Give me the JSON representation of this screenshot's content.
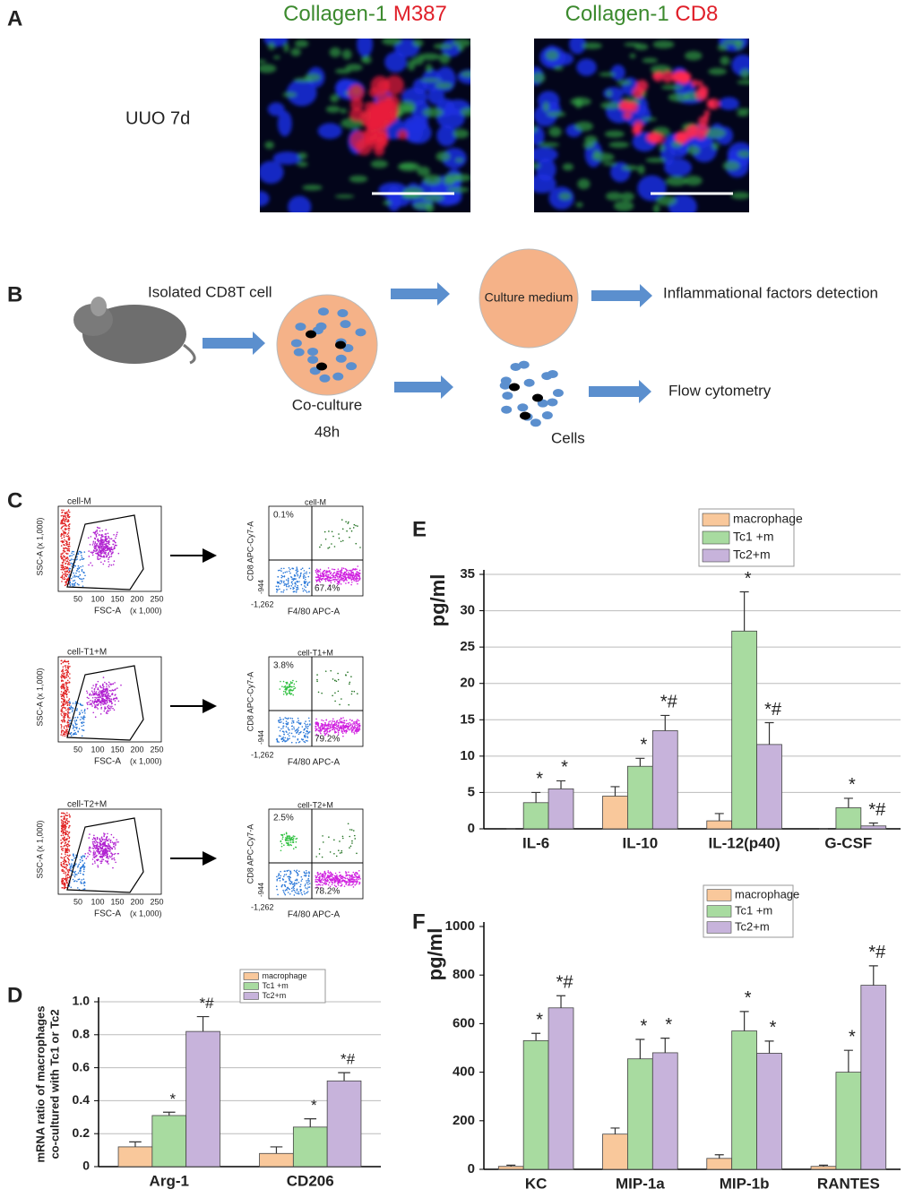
{
  "panels": {
    "labels": [
      "A",
      "B",
      "C",
      "D",
      "E",
      "F"
    ],
    "A": {
      "row_label": "UUO 7d",
      "images": [
        {
          "stain1": "Collagen-1",
          "stain2": "M387"
        },
        {
          "stain1": "Collagen-1",
          "stain2": "CD8"
        }
      ]
    },
    "B": {
      "source": "Isolated CD8T cell",
      "coculture": "Co-culture",
      "duration": "48h",
      "medium": "Culture medium",
      "cells": "Cells",
      "medium_output": "Inflammational factors detection",
      "cells_output": "Flow cytometry"
    },
    "C": {
      "fsc_label": "FSC-A",
      "ssc_label": "SSC-A (x 1,000)",
      "scale": "(x 1,000)",
      "fsc_ticks": [
        "50",
        "100",
        "150",
        "200",
        "250"
      ],
      "cd8_label": "CD8 APC-Cy7-A",
      "f480_label": "F4/80 APC-A",
      "neg_x": "-1,262",
      "neg_y": "-944",
      "plots": [
        {
          "gate": "cell-M",
          "upper": "0.1%",
          "lower": "67.4%"
        },
        {
          "gate": "cell-T1+M",
          "upper": "3.8%",
          "lower": "79.2%"
        },
        {
          "gate": "cell-T2+M",
          "upper": "2.5%",
          "lower": "78.2%"
        }
      ]
    }
  },
  "chart_data": [
    {
      "type": "bar",
      "ylabel": [
        "mRNA ratio of macrophages",
        "co-cultured with Tc1 or Tc2"
      ],
      "categories": [
        "Arg-1",
        "CD206"
      ],
      "series": [
        {
          "name": "macrophage",
          "color": "#f9c89b",
          "values": [
            0.12,
            0.08
          ],
          "errors": [
            0.03,
            0.04
          ],
          "labels": [
            null,
            null
          ]
        },
        {
          "name": "Tc1 +m",
          "color": "#a8dba0",
          "values": [
            0.31,
            0.24
          ],
          "errors": [
            0.02,
            0.05
          ],
          "labels": [
            "*",
            "*"
          ]
        },
        {
          "name": "Tc2+m",
          "color": "#c7b3db",
          "values": [
            0.82,
            0.52
          ],
          "errors": [
            0.09,
            0.05
          ],
          "labels": [
            "*#",
            "*#"
          ]
        }
      ],
      "ylim": [
        0,
        1
      ],
      "yticks": [
        0,
        0.2,
        0.4,
        0.6,
        0.8,
        {
          "value": 1,
          "label": "1.0"
        }
      ],
      "grid": true
    },
    {
      "type": "bar",
      "ylabel": "pg/ml",
      "categories": [
        "IL-6",
        "IL-10",
        "IL-12(p40)",
        "G-CSF"
      ],
      "series": [
        {
          "name": "macrophage",
          "color": "#f9c89b",
          "values": [
            0,
            4.5,
            1.1,
            0
          ],
          "errors": [
            0,
            1.3,
            1.0,
            0
          ],
          "labels": [
            null,
            null,
            null,
            null
          ]
        },
        {
          "name": "Tc1 +m",
          "color": "#a8dba0",
          "values": [
            3.6,
            8.6,
            27.2,
            2.9
          ],
          "errors": [
            1.4,
            1.1,
            5.4,
            1.3
          ],
          "labels": [
            "*",
            "*",
            "*",
            "*"
          ]
        },
        {
          "name": "Tc2+m",
          "color": "#c7b3db",
          "values": [
            5.5,
            13.5,
            11.6,
            0.4
          ],
          "errors": [
            1.1,
            2.1,
            3.0,
            0.4
          ],
          "labels": [
            "*",
            "*#",
            "*#",
            "*#"
          ]
        }
      ],
      "ylim": [
        0,
        35
      ],
      "yticks": [
        0,
        5,
        10,
        15,
        20,
        25,
        30,
        35
      ],
      "grid": true
    },
    {
      "type": "bar",
      "ylabel": "pg/ml",
      "categories": [
        "KC",
        "MIP-1a",
        "MIP-1b",
        "RANTES"
      ],
      "series": [
        {
          "name": "macrophage",
          "color": "#f9c89b",
          "values": [
            12,
            145,
            45,
            12
          ],
          "errors": [
            5,
            25,
            15,
            5
          ],
          "labels": [
            null,
            null,
            null,
            null
          ]
        },
        {
          "name": "Tc1 +m",
          "color": "#a8dba0",
          "values": [
            530,
            455,
            570,
            400
          ],
          "errors": [
            30,
            80,
            80,
            90
          ],
          "labels": [
            "*",
            "*",
            "*",
            "*"
          ]
        },
        {
          "name": "Tc2+m",
          "color": "#c7b3db",
          "values": [
            665,
            480,
            478,
            758
          ],
          "errors": [
            50,
            60,
            50,
            80
          ],
          "labels": [
            "*#",
            "*",
            "*",
            "*#"
          ]
        }
      ],
      "ylim": [
        0,
        1000
      ],
      "yticks": [
        0,
        200,
        400,
        600,
        800,
        1000
      ],
      "grid": false
    }
  ]
}
